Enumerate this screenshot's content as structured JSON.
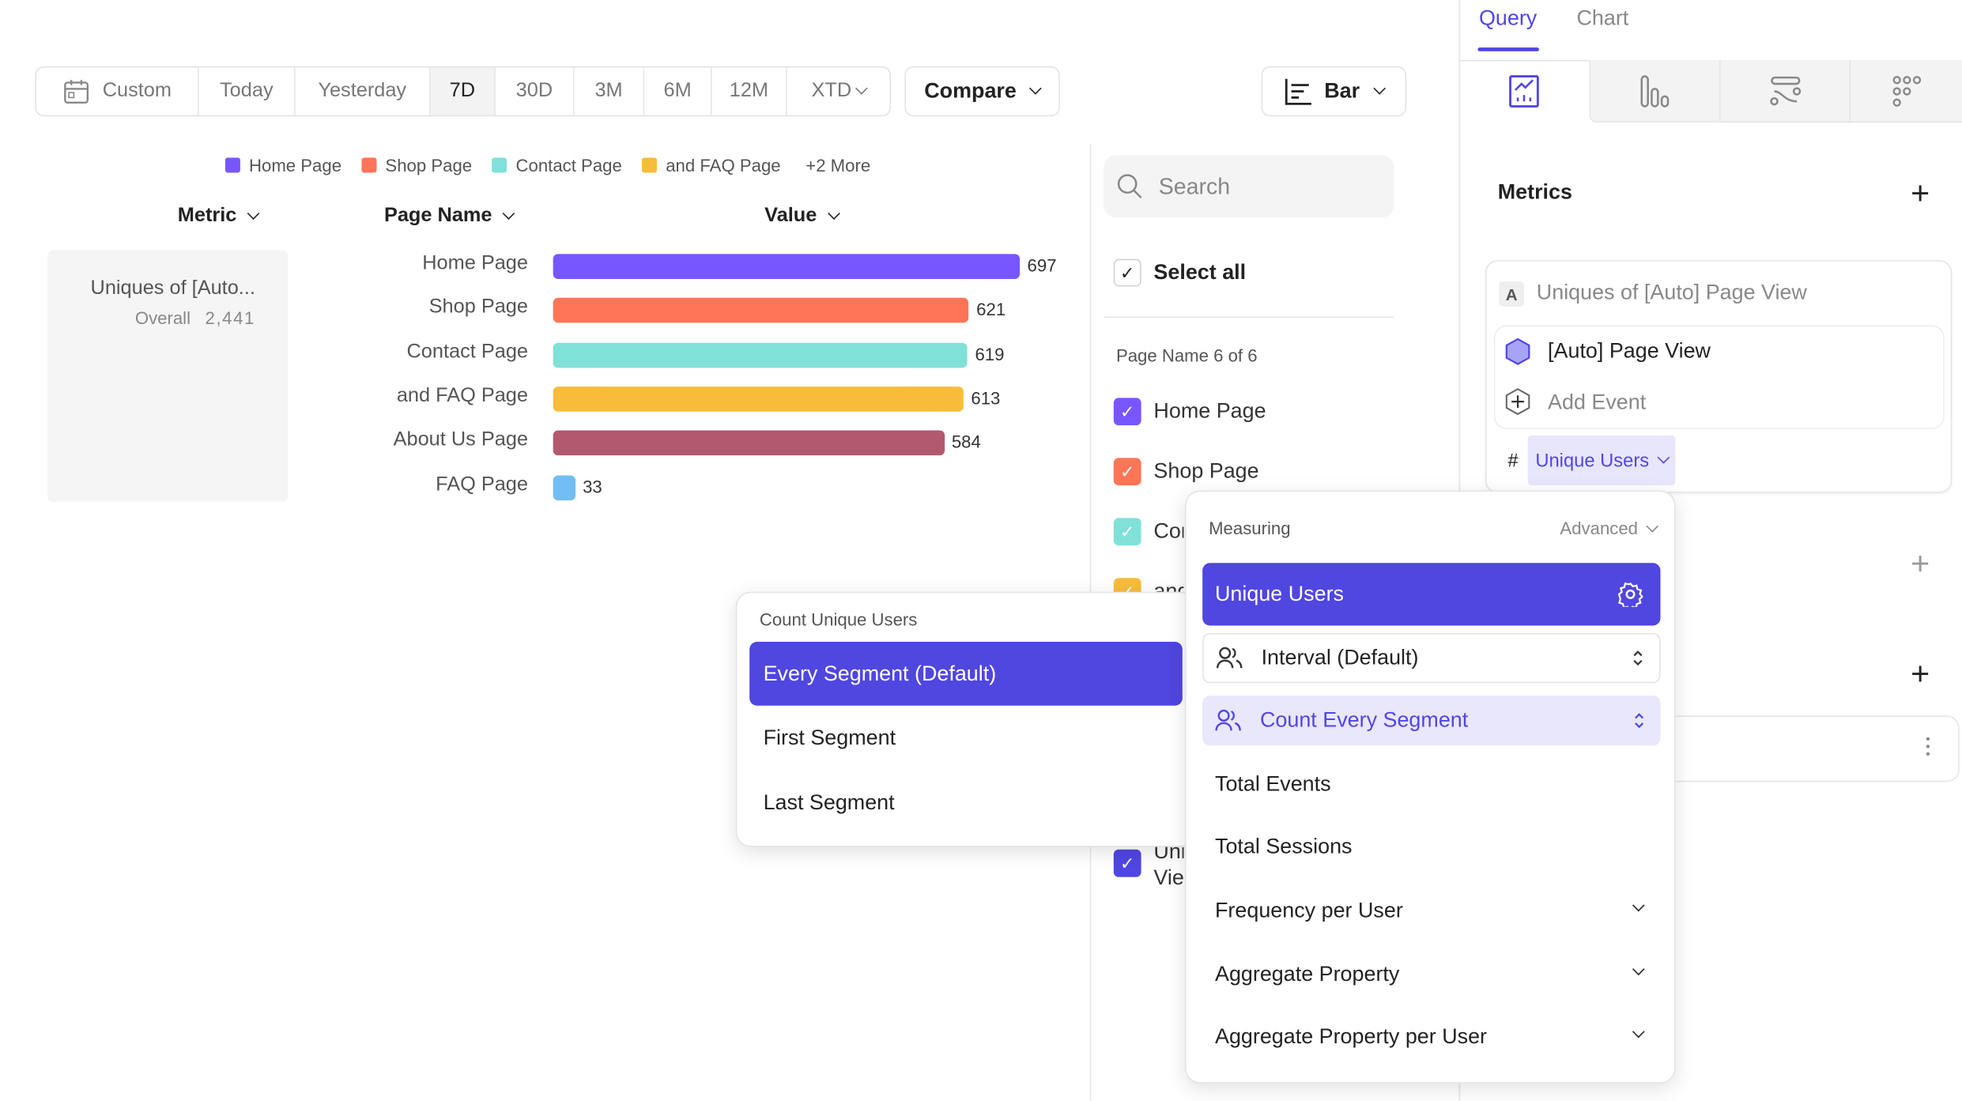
{
  "toolbar": {
    "date_ranges": [
      "Custom",
      "Today",
      "Yesterday",
      "7D",
      "30D",
      "3M",
      "6M",
      "12M",
      "XTD"
    ],
    "selected_range": "7D",
    "compare_label": "Compare",
    "chart_type_label": "Bar"
  },
  "legend": {
    "items": [
      "Home Page",
      "Shop Page",
      "Contact Page",
      "and FAQ Page"
    ],
    "more": "+2 More"
  },
  "table_headers": {
    "metric": "Metric",
    "page_name": "Page Name",
    "value": "Value"
  },
  "metric_card": {
    "title": "Uniques of [Auto...",
    "overall_label": "Overall",
    "overall_value": "2,441"
  },
  "chart_data": {
    "type": "bar",
    "orientation": "horizontal",
    "categories": [
      "Home Page",
      "Shop Page",
      "Contact Page",
      "and FAQ Page",
      "About Us Page",
      "FAQ Page"
    ],
    "values": [
      697,
      621,
      619,
      613,
      584,
      33
    ],
    "colors": [
      "#7856ff",
      "#ff7557",
      "#80e1d9",
      "#f8bc3b",
      "#b2596e",
      "#72bef4"
    ]
  },
  "filter": {
    "search_placeholder": "Search",
    "select_all": "Select all",
    "section_label": "Page Name 6 of 6",
    "items": [
      {
        "label": "Home Page",
        "color": "#7856ff"
      },
      {
        "label": "Shop Page",
        "color": "#ff7557"
      },
      {
        "label": "Contact Page",
        "color": "#80e1d9"
      },
      {
        "label": "and FAQ Page",
        "color": "#f8bc3b"
      }
    ],
    "bottom_item": {
      "label": "Uniques of [Auto] Page View",
      "color": "#5046e4"
    }
  },
  "right_panel": {
    "tabs": [
      "Query",
      "Chart"
    ],
    "active_tab": "Query",
    "metrics_title": "Metrics",
    "metric": {
      "badge": "A",
      "name": "Uniques of [Auto] Page View",
      "event": "[Auto] Page View",
      "add_event": "Add Event",
      "hash": "#",
      "measure": "Unique Users"
    }
  },
  "measuring_popup": {
    "title": "Measuring",
    "advanced": "Advanced",
    "selected": "Unique Users",
    "interval": "Interval (Default)",
    "count_mode": "Count Every Segment",
    "options": [
      "Total Events",
      "Total Sessions"
    ],
    "expandable": [
      "Frequency per User",
      "Aggregate Property",
      "Aggregate Property per User"
    ]
  },
  "count_popup": {
    "title": "Count Unique Users",
    "options": [
      "Every Segment (Default)",
      "First Segment",
      "Last Segment"
    ],
    "selected": "Every Segment (Default)"
  },
  "accent": "#5046e4"
}
